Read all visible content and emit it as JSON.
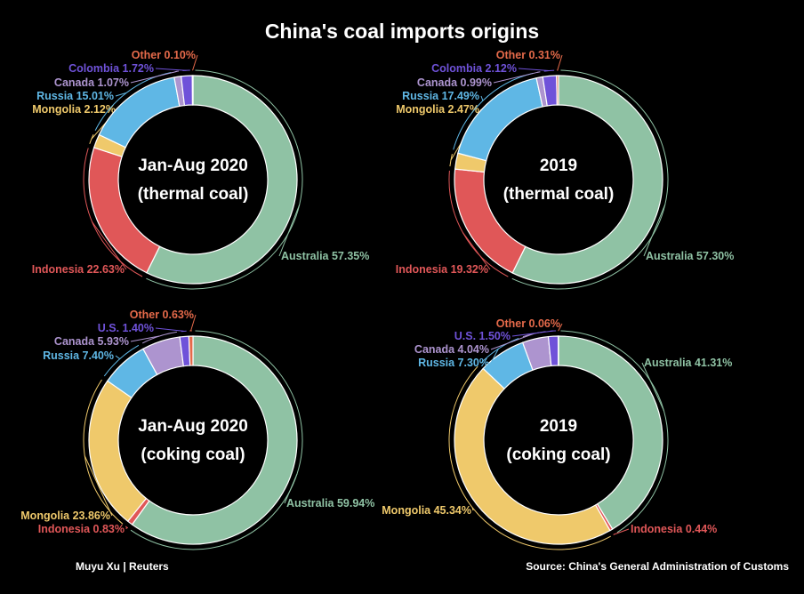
{
  "title": "China's coal imports origins",
  "credit": "Muyu Xu | Reuters",
  "source": "Source: China's General Administration of Customs",
  "colors": {
    "Australia": "#8fc2a4",
    "Indonesia": "#e05758",
    "Mongolia": "#efc96b",
    "Russia": "#5fb7e5",
    "Canada": "#ad94cf",
    "Colombia": "#6f52d9",
    "U.S.": "#6f52d9",
    "Other": "#e56a4a"
  },
  "chart_data": [
    {
      "type": "pie",
      "center_lines": [
        "Jan-Aug 2020",
        "(thermal coal)"
      ],
      "slices": [
        {
          "name": "Australia",
          "value": 57.35,
          "label": "Australia 57.35%"
        },
        {
          "name": "Indonesia",
          "value": 22.63,
          "label": "Indonesia 22.63%"
        },
        {
          "name": "Mongolia",
          "value": 2.12,
          "label": "Mongolia 2.12%"
        },
        {
          "name": "Russia",
          "value": 15.01,
          "label": "Russia 15.01%"
        },
        {
          "name": "Canada",
          "value": 1.07,
          "label": "Canada 1.07%"
        },
        {
          "name": "Colombia",
          "value": 1.72,
          "label": "Colombia 1.72%"
        },
        {
          "name": "Other",
          "value": 0.1,
          "label": "Other 0.10%"
        }
      ]
    },
    {
      "type": "pie",
      "center_lines": [
        "2019",
        "(thermal coal)"
      ],
      "slices": [
        {
          "name": "Australia",
          "value": 57.3,
          "label": "Australia 57.30%"
        },
        {
          "name": "Indonesia",
          "value": 19.32,
          "label": "Indonesia 19.32%"
        },
        {
          "name": "Mongolia",
          "value": 2.47,
          "label": "Mongolia 2.47%"
        },
        {
          "name": "Russia",
          "value": 17.49,
          "label": "Russia 17.49%"
        },
        {
          "name": "Canada",
          "value": 0.99,
          "label": "Canada 0.99%"
        },
        {
          "name": "Colombia",
          "value": 2.12,
          "label": "Colombia 2.12%"
        },
        {
          "name": "Other",
          "value": 0.31,
          "label": "Other 0.31%"
        }
      ]
    },
    {
      "type": "pie",
      "center_lines": [
        "Jan-Aug 2020",
        "(coking coal)"
      ],
      "slices": [
        {
          "name": "Australia",
          "value": 59.94,
          "label": "Australia 59.94%"
        },
        {
          "name": "Indonesia",
          "value": 0.83,
          "label": "Indonesia 0.83%"
        },
        {
          "name": "Mongolia",
          "value": 23.86,
          "label": "Mongolia 23.86%"
        },
        {
          "name": "Russia",
          "value": 7.4,
          "label": "Russia 7.40%"
        },
        {
          "name": "Canada",
          "value": 5.93,
          "label": "Canada 5.93%"
        },
        {
          "name": "U.S.",
          "value": 1.4,
          "label": "U.S. 1.40%"
        },
        {
          "name": "Other",
          "value": 0.63,
          "label": "Other 0.63%"
        }
      ]
    },
    {
      "type": "pie",
      "center_lines": [
        "2019",
        "(coking coal)"
      ],
      "slices": [
        {
          "name": "Australia",
          "value": 41.31,
          "label": "Australia 41.31%"
        },
        {
          "name": "Indonesia",
          "value": 0.44,
          "label": "Indonesia 0.44%"
        },
        {
          "name": "Mongolia",
          "value": 45.34,
          "label": "Mongolia 45.34%"
        },
        {
          "name": "Russia",
          "value": 7.3,
          "label": "Russia 7.30%"
        },
        {
          "name": "Canada",
          "value": 4.04,
          "label": "Canada 4.04%"
        },
        {
          "name": "U.S.",
          "value": 1.5,
          "label": "U.S. 1.50%"
        },
        {
          "name": "Other",
          "value": 0.06,
          "label": "Other 0.06%"
        }
      ]
    }
  ]
}
